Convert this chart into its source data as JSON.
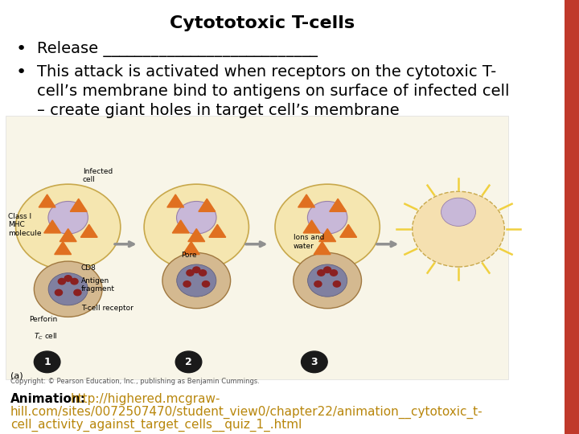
{
  "title": "Cytototoxic T-cells",
  "bullet1": "Release ___________________________",
  "bullet2_line1": "This attack is activated when receptors on the cytotoxic T-",
  "bullet2_line2": "cell’s membrane bind to antigens on surface of infected cell",
  "bullet2_line3": "– create giant holes in target cell’s membrane",
  "animation_label": "Animation",
  "url_line1": "http://highered.mcgraw-",
  "url_line2": "hill.com/sites/0072507470/student_view0/chapter22/animation__cytotoxic_t-",
  "url_line3": "cell_activity_against_target_cells__quiz_1_.html",
  "copyright": "Copyright: © Pearson Education, Inc., publishing as Benjamin Cummings.",
  "right_bar_color": "#c0392b",
  "background_color": "#ffffff",
  "title_fontsize": 16,
  "bullet_fontsize": 14,
  "animation_fontsize": 11,
  "link_color": "#b8860b",
  "text_color": "#000000"
}
